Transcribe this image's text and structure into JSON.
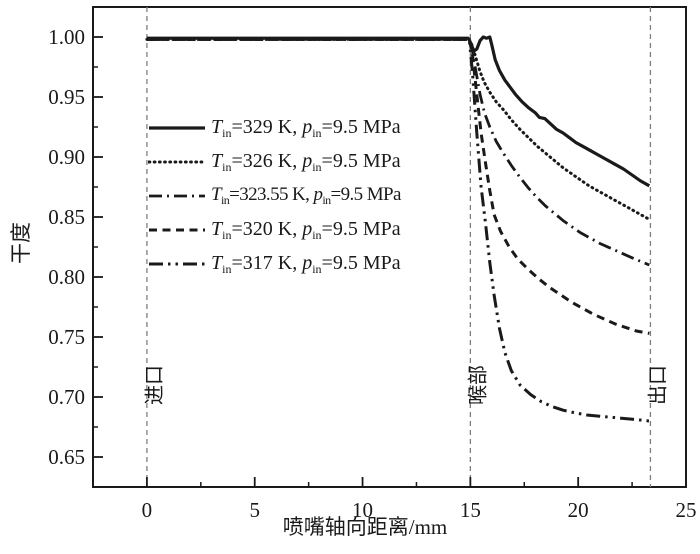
{
  "chart_data": {
    "type": "line",
    "title": "",
    "xlabel": "喷嘴轴向距离/mm",
    "ylabel": "干度",
    "xlim": [
      -2.5,
      25
    ],
    "ylim": [
      0.625,
      1.025
    ],
    "grid": false,
    "legend_position": "upper-left-inside",
    "x_ticks": {
      "values": [
        0,
        5,
        10,
        15,
        20,
        25
      ],
      "labels": [
        "0",
        "5",
        "10",
        "15",
        "20",
        "25"
      ],
      "minor": [
        2.5,
        7.5,
        12.5,
        17.5,
        22.5
      ]
    },
    "y_ticks": {
      "values": [
        1.0,
        0.95,
        0.9,
        0.85,
        0.8,
        0.75,
        0.7,
        0.65
      ],
      "labels": [
        "1.00",
        "0.95",
        "0.90",
        "0.85",
        "0.80",
        "0.75",
        "0.70",
        "0.65"
      ],
      "minor": [
        0.975,
        0.925,
        0.875,
        0.825,
        0.775,
        0.725,
        0.675
      ]
    },
    "reference_lines": [
      {
        "name": "inlet-line",
        "label": "进口",
        "x": 0
      },
      {
        "name": "throat-line",
        "label": "喉部",
        "x": 15
      },
      {
        "name": "outlet-line",
        "label": "出口",
        "x": 23.35
      }
    ],
    "series": [
      {
        "name": "Tin-329K",
        "style": "solid",
        "legend": {
          "t_sym": "T",
          "t_sub": "in",
          "t_eq": "=",
          "t_val": "329 K, ",
          "p_sym": "p",
          "p_sub": "in",
          "p_eq": "=",
          "p_val": "9.5 MPa",
          "condensed": false
        },
        "points": [
          [
            0,
            0.999
          ],
          [
            5,
            0.999
          ],
          [
            10,
            0.999
          ],
          [
            14.9,
            0.999
          ],
          [
            15.05,
            0.994
          ],
          [
            15.15,
            0.988
          ],
          [
            15.3,
            0.99
          ],
          [
            15.45,
            0.997
          ],
          [
            15.6,
            1.0
          ],
          [
            15.75,
            0.999
          ],
          [
            15.9,
            1.0
          ],
          [
            16.0,
            0.993
          ],
          [
            16.15,
            0.981
          ],
          [
            16.35,
            0.972
          ],
          [
            16.6,
            0.964
          ],
          [
            16.85,
            0.958
          ],
          [
            17.1,
            0.952
          ],
          [
            17.4,
            0.946
          ],
          [
            17.7,
            0.941
          ],
          [
            18.0,
            0.937
          ],
          [
            18.2,
            0.933
          ],
          [
            18.45,
            0.932
          ],
          [
            18.7,
            0.928
          ],
          [
            19.0,
            0.923
          ],
          [
            19.3,
            0.92
          ],
          [
            19.6,
            0.916
          ],
          [
            19.9,
            0.912
          ],
          [
            20.2,
            0.909
          ],
          [
            20.5,
            0.906
          ],
          [
            20.9,
            0.902
          ],
          [
            21.3,
            0.898
          ],
          [
            21.7,
            0.894
          ],
          [
            22.1,
            0.89
          ],
          [
            22.5,
            0.885
          ],
          [
            22.9,
            0.88
          ],
          [
            23.3,
            0.876
          ]
        ]
      },
      {
        "name": "Tin-326K",
        "style": "dotted",
        "legend": {
          "t_sym": "T",
          "t_sub": "in",
          "t_eq": "=",
          "t_val": "326 K, ",
          "p_sym": "p",
          "p_sub": "in",
          "p_eq": "=",
          "p_val": "9.5 MPa",
          "condensed": false
        },
        "points": [
          [
            0,
            0.998
          ],
          [
            5,
            0.998
          ],
          [
            10,
            0.998
          ],
          [
            14.95,
            0.998
          ],
          [
            15.1,
            0.992
          ],
          [
            15.25,
            0.983
          ],
          [
            15.45,
            0.971
          ],
          [
            15.65,
            0.962
          ],
          [
            15.9,
            0.954
          ],
          [
            16.2,
            0.946
          ],
          [
            16.55,
            0.939
          ],
          [
            16.9,
            0.931
          ],
          [
            17.3,
            0.923
          ],
          [
            17.7,
            0.916
          ],
          [
            18.1,
            0.909
          ],
          [
            18.5,
            0.903
          ],
          [
            18.9,
            0.897
          ],
          [
            19.3,
            0.891
          ],
          [
            19.7,
            0.886
          ],
          [
            20.1,
            0.881
          ],
          [
            20.5,
            0.876
          ],
          [
            21.0,
            0.871
          ],
          [
            21.5,
            0.866
          ],
          [
            22.0,
            0.861
          ],
          [
            22.5,
            0.856
          ],
          [
            22.9,
            0.852
          ],
          [
            23.3,
            0.848
          ]
        ]
      },
      {
        "name": "Tin-323.55K",
        "style": "dashdot",
        "legend": {
          "t_sym": "T",
          "t_sub": "in",
          "t_eq": "=",
          "t_val": "323.55 K, ",
          "p_sym": "p",
          "p_sub": "in",
          "p_eq": "=",
          "p_val": "9.5 MPa",
          "condensed": true
        },
        "points": [
          [
            0,
            0.998
          ],
          [
            5,
            0.998
          ],
          [
            10,
            0.998
          ],
          [
            14.95,
            0.998
          ],
          [
            15.1,
            0.988
          ],
          [
            15.25,
            0.972
          ],
          [
            15.45,
            0.952
          ],
          [
            15.65,
            0.937
          ],
          [
            15.9,
            0.925
          ],
          [
            16.2,
            0.913
          ],
          [
            16.5,
            0.904
          ],
          [
            16.9,
            0.893
          ],
          [
            17.3,
            0.883
          ],
          [
            17.7,
            0.874
          ],
          [
            18.1,
            0.866
          ],
          [
            18.5,
            0.859
          ],
          [
            18.9,
            0.853
          ],
          [
            19.3,
            0.847
          ],
          [
            19.7,
            0.842
          ],
          [
            20.1,
            0.837
          ],
          [
            20.5,
            0.833
          ],
          [
            21.0,
            0.828
          ],
          [
            21.5,
            0.824
          ],
          [
            22.0,
            0.82
          ],
          [
            22.5,
            0.816
          ],
          [
            22.9,
            0.813
          ],
          [
            23.3,
            0.81
          ]
        ]
      },
      {
        "name": "Tin-320K",
        "style": "dashed",
        "legend": {
          "t_sym": "T",
          "t_sub": "in",
          "t_eq": "=",
          "t_val": "320 K, ",
          "p_sym": "p",
          "p_sub": "in",
          "p_eq": "=",
          "p_val": "9.5 MPa",
          "condensed": false
        },
        "points": [
          [
            0,
            0.998
          ],
          [
            5,
            0.998
          ],
          [
            10,
            0.998
          ],
          [
            14.95,
            0.998
          ],
          [
            15.1,
            0.985
          ],
          [
            15.3,
            0.952
          ],
          [
            15.5,
            0.92
          ],
          [
            15.7,
            0.895
          ],
          [
            15.9,
            0.872
          ],
          [
            16.1,
            0.852
          ],
          [
            16.4,
            0.838
          ],
          [
            16.8,
            0.825
          ],
          [
            17.2,
            0.815
          ],
          [
            17.7,
            0.806
          ],
          [
            18.2,
            0.798
          ],
          [
            18.7,
            0.791
          ],
          [
            19.2,
            0.785
          ],
          [
            19.7,
            0.779
          ],
          [
            20.2,
            0.774
          ],
          [
            20.7,
            0.769
          ],
          [
            21.2,
            0.765
          ],
          [
            21.7,
            0.761
          ],
          [
            22.2,
            0.758
          ],
          [
            22.7,
            0.755
          ],
          [
            23.3,
            0.753
          ]
        ]
      },
      {
        "name": "Tin-317K",
        "style": "dashdotdot",
        "legend": {
          "t_sym": "T",
          "t_sub": "in",
          "t_eq": "=",
          "t_val": "317 K, ",
          "p_sym": "p",
          "p_sub": "in",
          "p_eq": "=",
          "p_val": "9.5 MPa",
          "condensed": false
        },
        "points": [
          [
            0,
            0.998
          ],
          [
            5,
            0.998
          ],
          [
            10,
            0.998
          ],
          [
            14.95,
            0.998
          ],
          [
            15.1,
            0.97
          ],
          [
            15.3,
            0.92
          ],
          [
            15.5,
            0.875
          ],
          [
            15.7,
            0.845
          ],
          [
            15.9,
            0.812
          ],
          [
            16.1,
            0.785
          ],
          [
            16.35,
            0.757
          ],
          [
            16.6,
            0.737
          ],
          [
            16.9,
            0.722
          ],
          [
            17.3,
            0.71
          ],
          [
            17.8,
            0.702
          ],
          [
            18.3,
            0.696
          ],
          [
            18.8,
            0.692
          ],
          [
            19.3,
            0.689
          ],
          [
            19.8,
            0.687
          ],
          [
            20.4,
            0.685
          ],
          [
            21.0,
            0.684
          ],
          [
            21.6,
            0.683
          ],
          [
            22.2,
            0.682
          ],
          [
            22.8,
            0.681
          ],
          [
            23.3,
            0.68
          ]
        ]
      }
    ],
    "colors": {
      "curve": "#1a1a1a",
      "axis": "#1a1a1a",
      "reference_line": "#7f7f7f",
      "background": "#ffffff"
    }
  }
}
